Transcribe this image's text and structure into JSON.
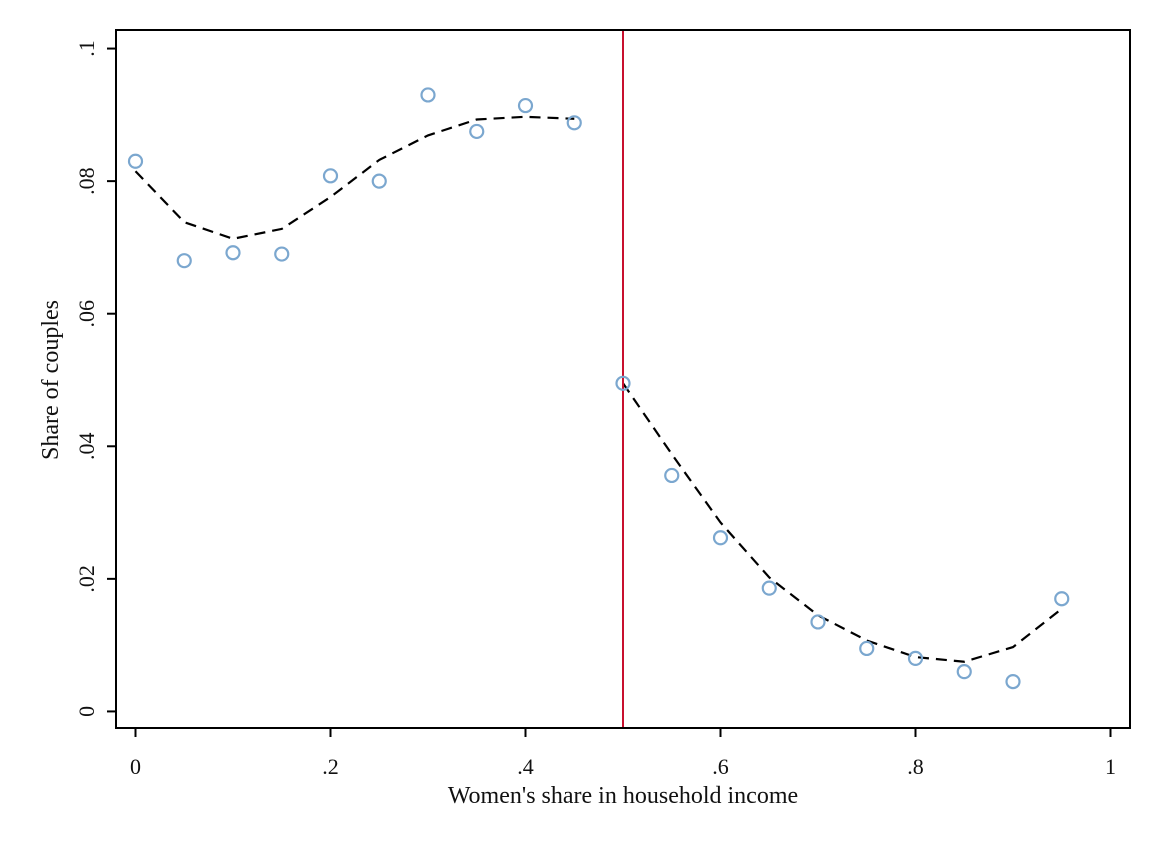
{
  "chart_data": {
    "type": "scatter",
    "title": "",
    "xlabel": "Women's share in household income",
    "ylabel": "Share of couples",
    "xlim": [
      -0.02,
      1.02
    ],
    "ylim": [
      -0.0025,
      0.1028
    ],
    "x_ticks": [
      {
        "value": 0,
        "label": "0"
      },
      {
        "value": 0.2,
        "label": ".2"
      },
      {
        "value": 0.4,
        "label": ".4"
      },
      {
        "value": 0.6,
        "label": ".6"
      },
      {
        "value": 0.8,
        "label": ".8"
      },
      {
        "value": 1.0,
        "label": "1"
      }
    ],
    "y_ticks": [
      {
        "value": 0,
        "label": "0"
      },
      {
        "value": 0.02,
        "label": ".02"
      },
      {
        "value": 0.04,
        "label": ".04"
      },
      {
        "value": 0.06,
        "label": ".06"
      },
      {
        "value": 0.08,
        "label": ".08"
      },
      {
        "value": 0.1,
        "label": ".1"
      }
    ],
    "grid": false,
    "threshold_x": 0.5,
    "colors": {
      "markers": "#7ba7cf",
      "fit": "#000000",
      "threshold": "#c8102e",
      "axis": "#000000"
    },
    "series": [
      {
        "kind": "points",
        "x": [
          0,
          0.05,
          0.1,
          0.15,
          0.2,
          0.25,
          0.3,
          0.35,
          0.4,
          0.45,
          0.5,
          0.55,
          0.6,
          0.65,
          0.7,
          0.75,
          0.8,
          0.85,
          0.9,
          0.95
        ],
        "y": [
          0.083,
          0.068,
          0.0692,
          0.069,
          0.0808,
          0.08,
          0.093,
          0.0875,
          0.0914,
          0.0888,
          0.0495,
          0.0356,
          0.0262,
          0.0186,
          0.0135,
          0.0095,
          0.008,
          0.006,
          0.0045,
          0.017
        ]
      },
      {
        "kind": "fit-left",
        "x": [
          0,
          0.05,
          0.1,
          0.15,
          0.2,
          0.25,
          0.3,
          0.35,
          0.4,
          0.45
        ],
        "y": [
          0.0815,
          0.0738,
          0.0713,
          0.0728,
          0.0776,
          0.0832,
          0.0869,
          0.0893,
          0.0897,
          0.0894
        ]
      },
      {
        "kind": "fit-right",
        "x": [
          0.5,
          0.55,
          0.6,
          0.65,
          0.7,
          0.75,
          0.8,
          0.85,
          0.9,
          0.95
        ],
        "y": [
          0.0495,
          0.0388,
          0.0285,
          0.0202,
          0.0145,
          0.0107,
          0.0082,
          0.0075,
          0.0097,
          0.0155
        ]
      }
    ]
  }
}
